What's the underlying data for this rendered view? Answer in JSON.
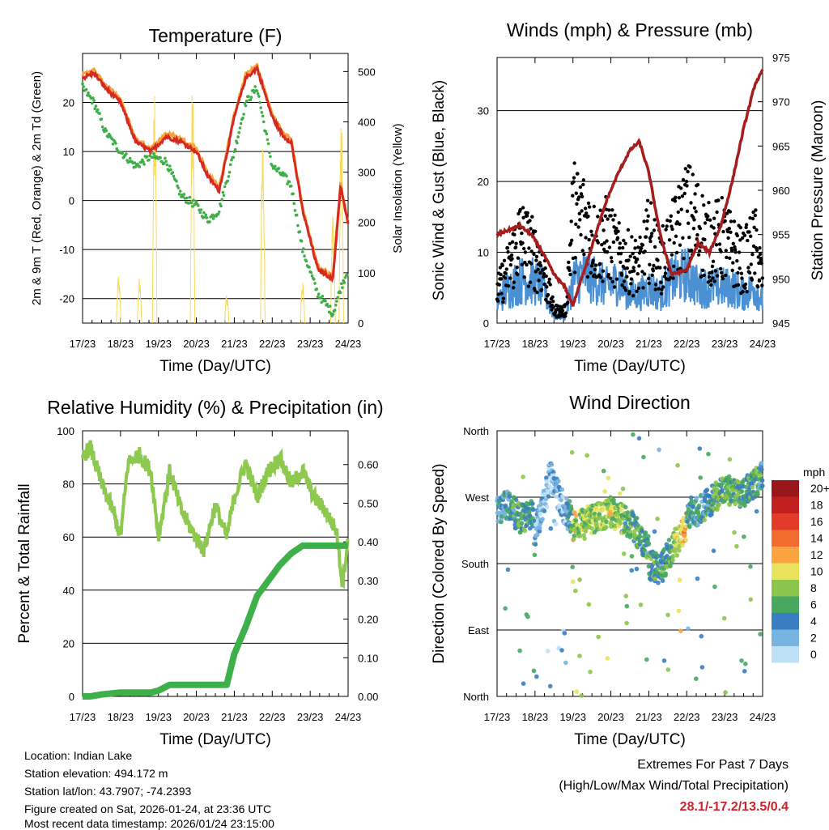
{
  "colors": {
    "temp": "#d62a20",
    "temp9": "#f4a23b",
    "dew": "#3fae49",
    "solar": "#f9d95c",
    "pressure": "#a61d1d",
    "wind": "#4a90d2",
    "gust": "#000000",
    "rh": "#8dc84f",
    "precip": "#3db04a",
    "extremes": "#cc2229"
  },
  "x_ticks": [
    "17/23",
    "18/23",
    "19/23",
    "20/23",
    "21/23",
    "22/23",
    "23/23",
    "24/23"
  ],
  "time_label": "Time (Day/UTC)",
  "chart_data": [
    {
      "type": "line",
      "title": "Temperature (F)",
      "ylabel": "2m & 9m T (Red, Orange) & 2m Td (Green)",
      "y2label": "Solar Insolation (Yellow)",
      "xlabel": "Time (Day/UTC)",
      "ylim": [
        -25,
        30
      ],
      "y2lim": [
        0,
        536
      ],
      "yticks": [
        -20,
        -10,
        0,
        10,
        20
      ],
      "y2ticks": [
        0,
        100,
        200,
        300,
        400,
        500
      ],
      "x": [
        0,
        0.3,
        0.6,
        1.0,
        1.4,
        1.8,
        2.2,
        2.6,
        3.0,
        3.3,
        3.6,
        4.0,
        4.3,
        4.6,
        5.0,
        5.3,
        5.5,
        5.8,
        6.2,
        6.6,
        6.8,
        7.0
      ],
      "series": [
        {
          "name": "2m T",
          "values": [
            25,
            26,
            23,
            20,
            12,
            10,
            13,
            12,
            10,
            5,
            2,
            17,
            25,
            27,
            17,
            13,
            12,
            -2,
            -14,
            -16,
            3,
            -5
          ]
        },
        {
          "name": "2m Td",
          "values": [
            23,
            20,
            14,
            10,
            7,
            9,
            8,
            1,
            -1,
            -4,
            -2,
            10,
            20,
            23,
            7,
            5,
            3,
            -10,
            -19,
            -23,
            -18,
            -14
          ]
        },
        {
          "name": "Solar Insolation",
          "values": [
            0,
            0,
            0,
            0,
            0,
            0,
            0,
            0,
            0,
            0,
            0,
            0,
            0,
            0,
            0,
            0,
            0,
            0,
            0,
            0,
            0,
            0
          ]
        }
      ],
      "solar_pulses": [
        {
          "day": 0.95,
          "peak": 100
        },
        {
          "day": 1.5,
          "peak": 90
        },
        {
          "day": 1.9,
          "peak": 520
        },
        {
          "day": 2.9,
          "peak": 510
        },
        {
          "day": 3.8,
          "peak": 60
        },
        {
          "day": 4.75,
          "peak": 400
        },
        {
          "day": 5.8,
          "peak": 90
        },
        {
          "day": 6.6,
          "peak": 240
        },
        {
          "day": 6.82,
          "peak": 420
        }
      ]
    },
    {
      "type": "line",
      "title": "Winds (mph) & Pressure (mb)",
      "ylabel": "Sonic Wind & Gust (Blue, Black)",
      "y2label": "Station Pressure (Maroon)",
      "xlabel": "Time (Day/UTC)",
      "ylim": [
        0,
        37.5
      ],
      "y2lim": [
        945,
        975
      ],
      "yticks": [
        0,
        10,
        20,
        30
      ],
      "y2ticks": [
        945,
        950,
        955,
        960,
        965,
        970,
        975
      ],
      "x": [
        0,
        0.3,
        0.6,
        0.9,
        1.2,
        1.5,
        1.8,
        2.0,
        2.3,
        2.6,
        2.9,
        3.2,
        3.5,
        3.75,
        4.0,
        4.3,
        4.6,
        5.0,
        5.3,
        5.6,
        5.9,
        6.2,
        6.5,
        6.8,
        7.0
      ],
      "series": [
        {
          "name": "Sonic Wind",
          "values": [
            3,
            5,
            6,
            6,
            5,
            1,
            1,
            6,
            7,
            6,
            5,
            6,
            4,
            4,
            5,
            4,
            6,
            7,
            5,
            5,
            5,
            5,
            4,
            5,
            3
          ]
        },
        {
          "name": "Wind Gust",
          "values": [
            5,
            9,
            14,
            12,
            9,
            2,
            2,
            18,
            17,
            13,
            14,
            11,
            10,
            9,
            14,
            10,
            13,
            18,
            16,
            13,
            14,
            12,
            10,
            13,
            7
          ]
        },
        {
          "name": "Station Pressure",
          "values": [
            955,
            955.5,
            956,
            955,
            953,
            950.5,
            949,
            947,
            951,
            955,
            959,
            962,
            964.5,
            965.5,
            962,
            955,
            950.5,
            951,
            954,
            953,
            956,
            961,
            967,
            972,
            973.5
          ]
        }
      ]
    },
    {
      "type": "line",
      "title": "Relative Humidity (%) & Precipitation (in)",
      "ylabel": "Percent & Total Rainfall",
      "xlabel": "Time (Day/UTC)",
      "ylim": [
        0,
        100
      ],
      "y2lim": [
        0,
        0.6875
      ],
      "yticks": [
        0,
        20,
        40,
        60,
        80,
        100
      ],
      "y2ticks": [
        "0.00",
        "0.10",
        "0.20",
        "0.30",
        "0.40",
        "0.50",
        "0.60"
      ],
      "x": [
        0,
        0.2,
        0.5,
        0.8,
        1.0,
        1.2,
        1.5,
        1.8,
        2.0,
        2.3,
        2.6,
        2.9,
        3.2,
        3.5,
        3.8,
        4.0,
        4.3,
        4.6,
        4.9,
        5.2,
        5.5,
        5.8,
        6.1,
        6.4,
        6.7,
        6.85,
        7.0
      ],
      "series": [
        {
          "name": "Relative Humidity",
          "values": [
            90,
            94,
            80,
            70,
            60,
            88,
            91,
            85,
            60,
            85,
            70,
            62,
            55,
            72,
            60,
            75,
            88,
            75,
            85,
            90,
            80,
            85,
            75,
            70,
            62,
            42,
            60
          ]
        },
        {
          "name": "Total Precipitation",
          "values": [
            0,
            0,
            0.005,
            0.008,
            0.01,
            0.01,
            0.01,
            0.01,
            0.015,
            0.03,
            0.03,
            0.03,
            0.03,
            0.03,
            0.03,
            0.11,
            0.18,
            0.26,
            0.3,
            0.34,
            0.37,
            0.39,
            0.39,
            0.39,
            0.39,
            0.39,
            0.39
          ]
        }
      ]
    },
    {
      "type": "scatter",
      "title": "Wind Direction",
      "ylabel": "Direction (Colored By Speed)",
      "xlabel": "Time (Day/UTC)",
      "ylim": [
        0,
        360
      ],
      "yticks": [
        "North",
        "East",
        "South",
        "West",
        "North"
      ],
      "color_unit": "mph",
      "color_levels": [
        "20+",
        "18",
        "16",
        "14",
        "12",
        "10",
        "8",
        "6",
        "4",
        "2",
        "0"
      ],
      "color_hex": [
        "#99161b",
        "#c0211f",
        "#e33a2a",
        "#f26b2f",
        "#f9a441",
        "#e8e35b",
        "#8cc54c",
        "#48a85f",
        "#3a7dc0",
        "#78b4e1",
        "#bde0f6"
      ],
      "series": [
        {
          "name": "Direction band 17/23-18/23",
          "x": [
            0,
            0.3,
            0.6,
            1.0
          ],
          "y": [
            250,
            260,
            240,
            250
          ],
          "speed": [
            3,
            4,
            6,
            4
          ]
        },
        {
          "name": "Direction band 18/23-19/23",
          "x": [
            1.0,
            1.4,
            1.8,
            2.0
          ],
          "y": [
            220,
            300,
            250,
            240
          ],
          "speed": [
            2,
            2,
            2,
            6
          ]
        },
        {
          "name": "Direction band 19/23-21/23",
          "x": [
            2.0,
            2.5,
            3.0,
            3.5,
            4.0
          ],
          "y": [
            230,
            240,
            250,
            235,
            200
          ],
          "speed": [
            9,
            8,
            9,
            6,
            5
          ]
        },
        {
          "name": "Direction band 21/23-22/23",
          "x": [
            4.0,
            4.3,
            4.6,
            5.0
          ],
          "y": [
            180,
            170,
            200,
            230
          ],
          "speed": [
            6,
            5,
            7,
            12
          ]
        },
        {
          "name": "Direction band 22/23-24/23",
          "x": [
            5.0,
            5.5,
            6.0,
            6.5,
            7.0
          ],
          "y": [
            240,
            260,
            280,
            275,
            300
          ],
          "speed": [
            4,
            5,
            7,
            6,
            5
          ]
        }
      ]
    }
  ],
  "info": {
    "location": "Location: Indian Lake",
    "elevation": "Station elevation: 494.172 m",
    "latlon": "Station lat/lon: 43.7907; -74.2393",
    "created": "Figure created on Sat, 2026-01-24, at 23:36 UTC",
    "recent": "Most recent data timestamp: 2026/01/24 23:15:00"
  },
  "extremes": {
    "title": "Extremes For Past 7 Days",
    "subtitle": "(High/Low/Max Wind/Total Precipitation)",
    "values": "28.1/-17.2/13.5/0.4"
  }
}
